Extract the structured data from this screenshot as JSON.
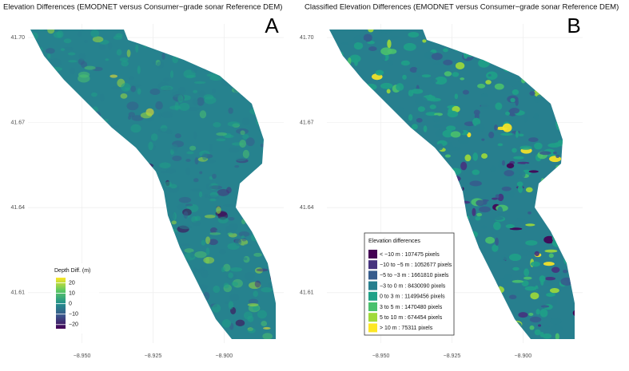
{
  "panels": [
    {
      "title": "Elevation Differences (EMODNET versus Consumer−grade sonar Reference DEM)",
      "letter": "A",
      "xlim": [
        -8.969,
        -8.879
      ],
      "ylim": [
        41.5922,
        41.7048
      ],
      "xticks": [
        {
          "value": -8.95,
          "label": "−8.950"
        },
        {
          "value": -8.925,
          "label": "−8.925"
        },
        {
          "value": -8.9,
          "label": "−8.900"
        }
      ],
      "yticks": [
        {
          "value": 41.7,
          "label": "41.70"
        },
        {
          "value": 41.67,
          "label": "41.67"
        },
        {
          "value": 41.64,
          "label": "41.64"
        },
        {
          "value": 41.61,
          "label": "41.61"
        }
      ],
      "legend": {
        "title": "Depth Diff. (m)",
        "lim": [
          -24,
          25
        ],
        "ticks": [
          20,
          10,
          0,
          {
            "value": -10,
            "label": "−10"
          },
          {
            "value": -20,
            "label": "−20"
          }
        ]
      }
    },
    {
      "title": "Classified Elevation Differences  (EMODNET versus Consumer−grade sonar Reference DEM)",
      "letter": "B",
      "xlim": [
        -8.969,
        -8.879
      ],
      "ylim": [
        41.5922,
        41.7048
      ],
      "xticks": [
        {
          "value": -8.95,
          "label": "−8.950"
        },
        {
          "value": -8.925,
          "label": "−8.925"
        },
        {
          "value": -8.9,
          "label": "−8.900"
        }
      ],
      "yticks": [
        {
          "value": 41.7,
          "label": "41.70"
        },
        {
          "value": 41.67,
          "label": "41.67"
        },
        {
          "value": 41.64,
          "label": "41.64"
        },
        {
          "value": 41.61,
          "label": "41.61"
        }
      ],
      "legend": {
        "title": "Elevation differences",
        "items": [
          {
            "label": "< −10 m : 107475 pixels",
            "color": "#440154"
          },
          {
            "label": "−10 to −5 m : 1052677 pixels",
            "color": "#46337e"
          },
          {
            "label": "−5 to −3 m : 1661810 pixels",
            "color": "#365c8d"
          },
          {
            "label": "−3 to 0 m : 8430090 pixels",
            "color": "#277f8e"
          },
          {
            "label": "0 to 3 m : 11499456 pixels",
            "color": "#1fa187"
          },
          {
            "label": "3 to 5 m : 1470480 pixels",
            "color": "#4ac16d"
          },
          {
            "label": "5 to 10 m : 674454 pixels",
            "color": "#a0da39"
          },
          {
            "label": "> 10 m : 75311 pixels",
            "color": "#fde725"
          }
        ]
      }
    }
  ]
}
